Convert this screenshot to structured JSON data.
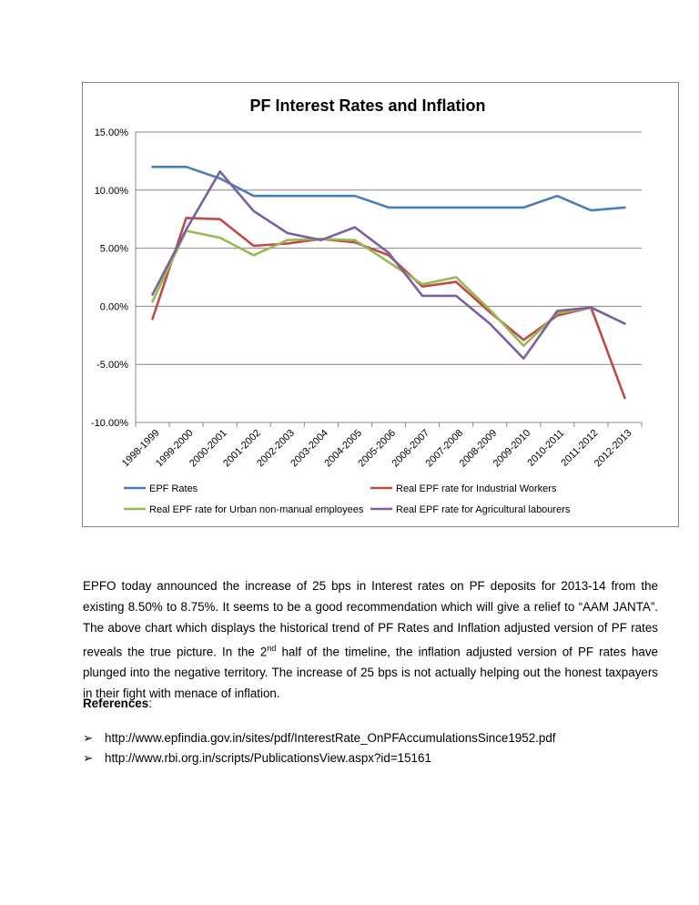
{
  "chart_data": {
    "type": "line",
    "title": "PF Interest Rates and Inflation",
    "xlabel": "",
    "ylabel": "",
    "ylim": [
      -10,
      15
    ],
    "yticks": [
      "15.00%",
      "10.00%",
      "5.00%",
      "0.00%",
      "-5.00%",
      "-10.00%"
    ],
    "ytick_values": [
      15,
      10,
      5,
      0,
      -5,
      -10
    ],
    "grid": true,
    "legend_position": "bottom",
    "categories": [
      "1998-1999",
      "1999-2000",
      "2000-2001",
      "2001-2002",
      "2002-2003",
      "2003-2004",
      "2004-2005",
      "2005-2006",
      "2006-2007",
      "2007-2008",
      "2008-2009",
      "2009-2010",
      "2010-2011",
      "2011-2012",
      "2012-2013"
    ],
    "series": [
      {
        "name": "EPF Rates",
        "color": "#4a7ebb",
        "values": [
          12,
          12,
          11,
          9.5,
          9.5,
          9.5,
          9.5,
          8.5,
          8.5,
          8.5,
          8.5,
          8.5,
          9.5,
          8.25,
          8.5
        ]
      },
      {
        "name": "Real EPF rate for Industrial Workers",
        "color": "#be4b48",
        "values": [
          -1.1,
          7.6,
          7.5,
          5.2,
          5.4,
          5.8,
          5.5,
          4.4,
          1.7,
          2.1,
          -0.5,
          -2.9,
          -0.8,
          -0.1,
          -7.9
        ]
      },
      {
        "name": "Real EPF rate for Urban non-manual employees",
        "color": "#98b954",
        "values": [
          0.4,
          6.5,
          5.9,
          4.4,
          5.7,
          5.8,
          5.7,
          3.8,
          1.9,
          2.5,
          -0.3,
          -3.4,
          -0.6,
          -0.1,
          -1.5
        ]
      },
      {
        "name": "Real EPF rate for Agricultural labourers",
        "color": "#7d60a0",
        "values": [
          1.0,
          6.6,
          11.6,
          8.2,
          6.3,
          5.7,
          6.8,
          4.6,
          0.9,
          0.9,
          -1.5,
          -4.5,
          -0.4,
          -0.1,
          -1.5
        ]
      }
    ]
  },
  "body": {
    "paragraph_part1": "EPFO today announced the increase of 25 bps in Interest rates on PF deposits for 2013-14 from the existing 8.50% to 8.75%. It seems to be a good recommendation which will give a relief to “AAM JANTA”. The above chart which displays the historical trend of PF Rates and Inflation adjusted version of PF rates reveals the true picture. In the 2",
    "paragraph_sup": "nd",
    "paragraph_part2": " half of the timeline, the inflation adjusted version of PF rates have plunged into the negative territory. The increase of 25 bps is not actually helping out the honest taxpayers in their fight with menace of inflation.",
    "references_label": "References",
    "references_colon": ":",
    "links": [
      "http://www.epfindia.gov.in/sites/pdf/InterestRate_OnPFAccumulationsSince1952.pdf",
      "http://www.rbi.org.in/scripts/PublicationsView.aspx?id=15161"
    ],
    "bullet_glyph": "➢"
  }
}
